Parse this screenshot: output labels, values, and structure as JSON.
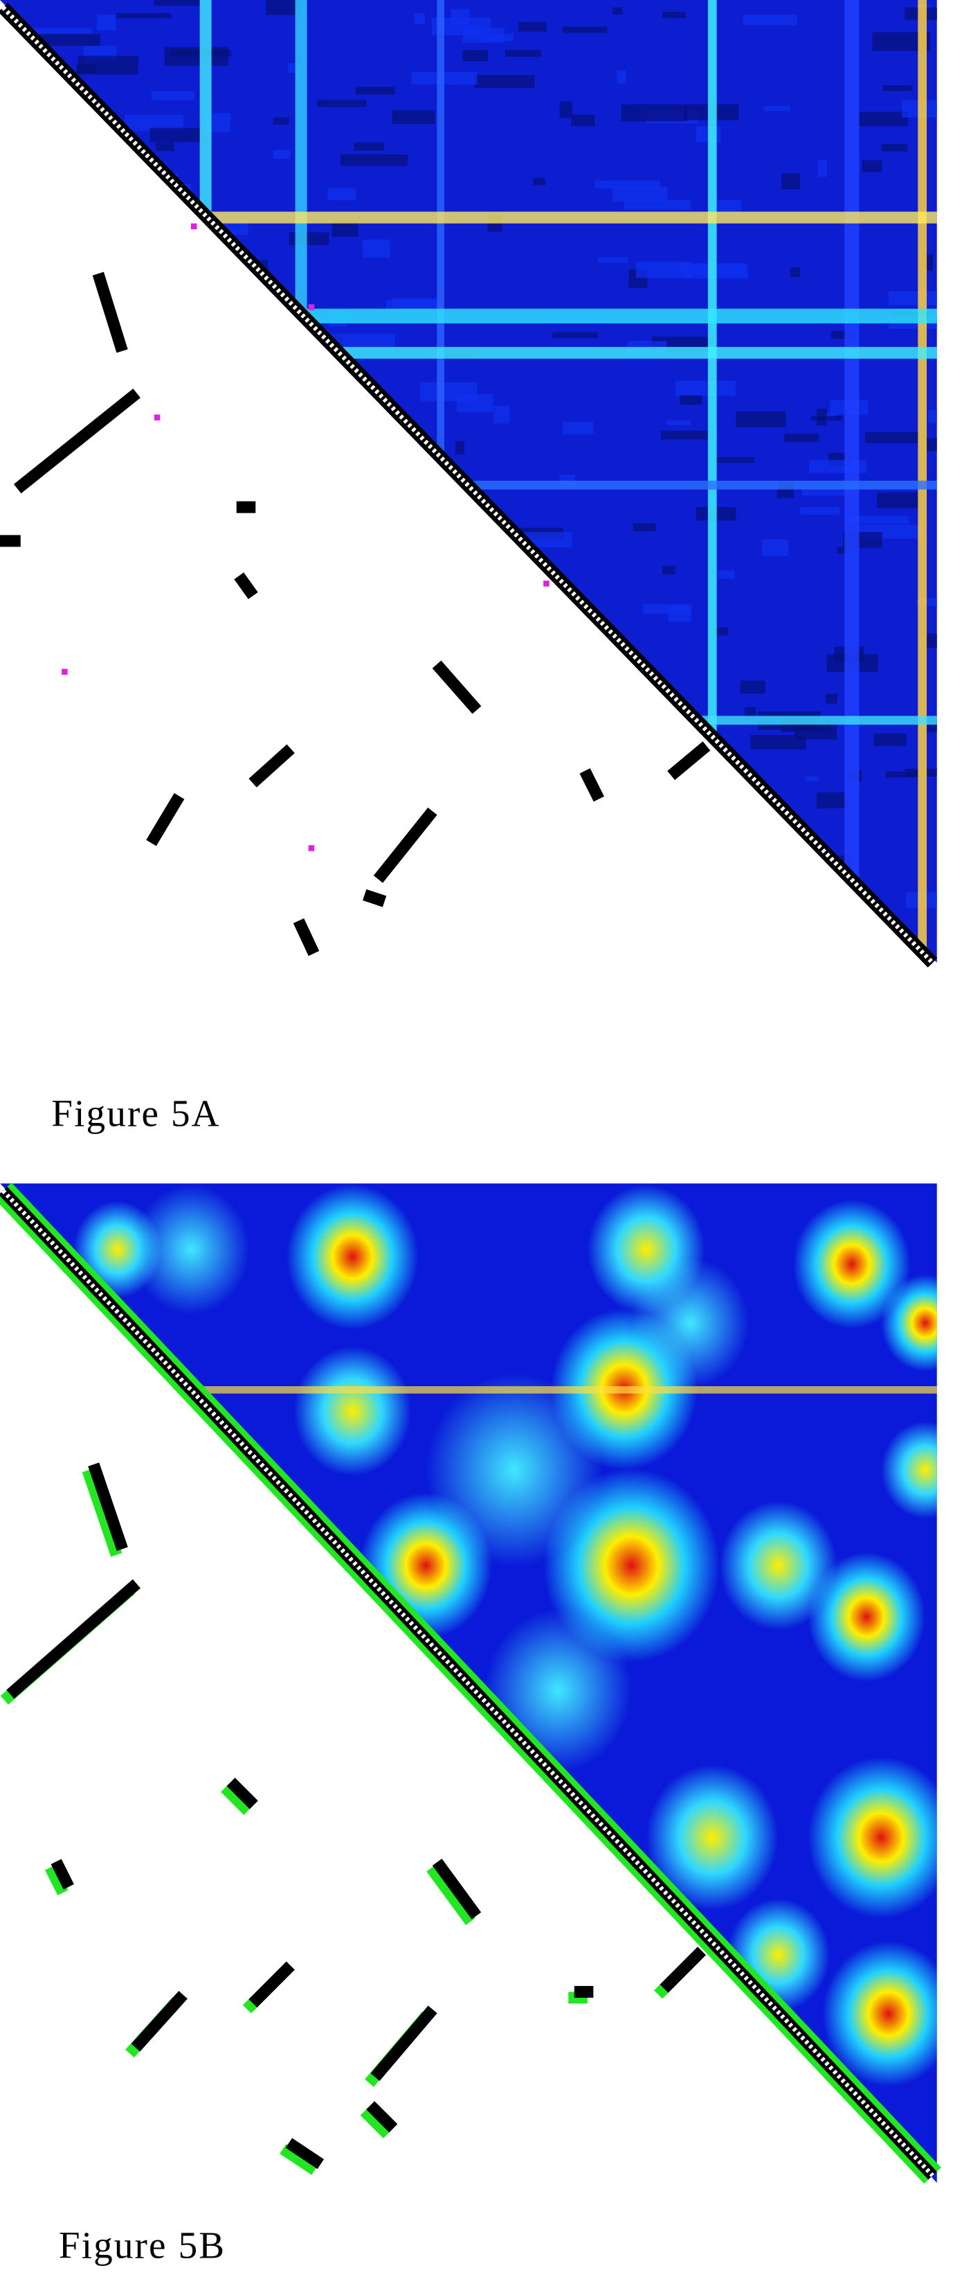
{
  "figures": [
    {
      "label": "Figure 5A"
    },
    {
      "label": "Figure 5B"
    }
  ]
}
